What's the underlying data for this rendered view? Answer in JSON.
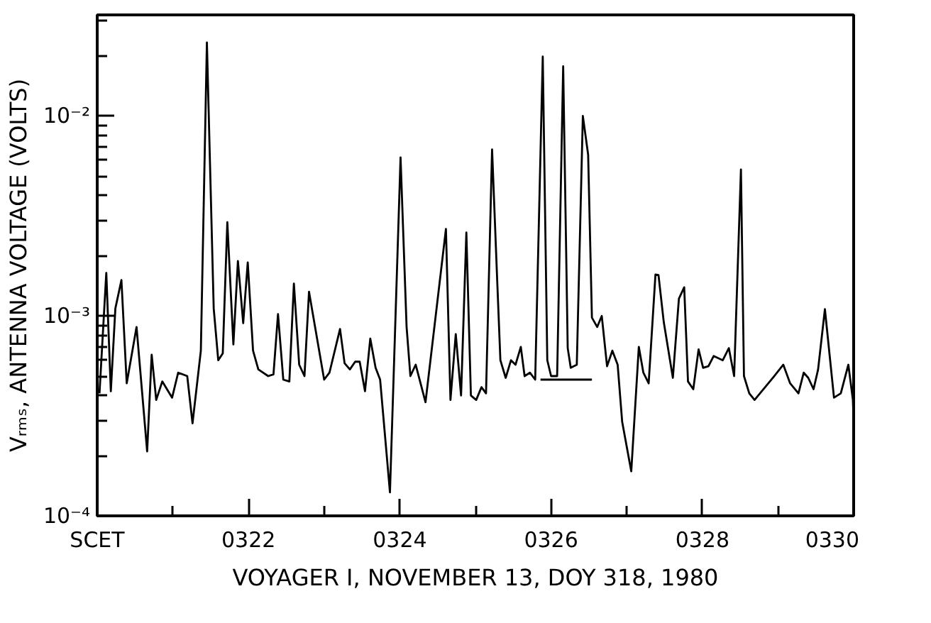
{
  "chart_data": {
    "type": "line",
    "xlabel": "VOYAGER I, NOVEMBER 13, DOY 318, 1980",
    "ylabel": "Vᵣₘₛ, ANTENNA VOLTAGE (VOLTS)",
    "log": "y",
    "grid": false,
    "marker": "none",
    "line_style": "solid",
    "xlim": [
      320,
      330
    ],
    "ylim": [
      0.0001,
      0.032
    ],
    "xticks": [
      {
        "value": 320,
        "label": "SCET"
      },
      {
        "value": 321,
        "label": null
      },
      {
        "value": 322,
        "label": "0322"
      },
      {
        "value": 323,
        "label": null
      },
      {
        "value": 324,
        "label": "0324"
      },
      {
        "value": 325,
        "label": null
      },
      {
        "value": 326,
        "label": "0326"
      },
      {
        "value": 327,
        "label": null
      },
      {
        "value": 328,
        "label": "0328"
      },
      {
        "value": 329,
        "label": null
      },
      {
        "value": 330,
        "label": "0330"
      }
    ],
    "yticks": [
      {
        "value": 0.0001,
        "label": "10⁻⁴"
      },
      {
        "value": 0.0002,
        "label": null
      },
      {
        "value": 0.0003,
        "label": null
      },
      {
        "value": 0.0004,
        "label": null
      },
      {
        "value": 0.0005,
        "label": null
      },
      {
        "value": 0.0006,
        "label": null
      },
      {
        "value": 0.0007,
        "label": null
      },
      {
        "value": 0.0008,
        "label": null
      },
      {
        "value": 0.0009,
        "label": null
      },
      {
        "value": 0.001,
        "label": "10⁻³"
      },
      {
        "value": 0.002,
        "label": null
      },
      {
        "value": 0.003,
        "label": null
      },
      {
        "value": 0.004,
        "label": null
      },
      {
        "value": 0.005,
        "label": null
      },
      {
        "value": 0.006,
        "label": null
      },
      {
        "value": 0.007,
        "label": null
      },
      {
        "value": 0.008,
        "label": null
      },
      {
        "value": 0.009,
        "label": null
      },
      {
        "value": 0.01,
        "label": "10⁻²"
      },
      {
        "value": 0.02,
        "label": null
      },
      {
        "value": 0.03,
        "label": null
      }
    ],
    "series": [
      {
        "color": "#000000",
        "x": [
          320.03,
          320.12,
          320.18,
          320.24,
          320.32,
          320.39,
          320.52,
          320.66,
          320.72,
          320.78,
          320.86,
          320.99,
          321.07,
          321.19,
          321.26,
          321.37,
          321.45,
          321.54,
          321.6,
          321.66,
          321.72,
          321.8,
          321.86,
          321.93,
          321.99,
          322.06,
          322.13,
          322.26,
          322.33,
          322.39,
          322.46,
          322.54,
          322.6,
          322.67,
          322.74,
          322.8,
          323.0,
          323.07,
          323.21,
          323.27,
          323.34,
          323.41,
          323.47,
          323.54,
          323.61,
          323.68,
          323.74,
          323.87,
          324.01,
          324.09,
          324.14,
          324.21,
          324.34,
          324.61,
          324.67,
          324.74,
          324.81,
          324.88,
          324.94,
          325.01,
          325.08,
          325.14,
          325.22,
          325.29,
          325.33,
          325.4,
          325.47,
          325.53,
          325.6,
          325.65,
          325.72,
          325.79,
          325.89,
          325.95,
          326.0,
          326.08,
          326.16,
          326.22,
          326.26,
          326.34,
          326.42,
          326.49,
          326.54,
          326.61,
          326.67,
          326.74,
          326.81,
          326.88,
          326.94,
          327.06,
          327.16,
          327.22,
          327.29,
          327.38,
          327.42,
          327.49,
          327.61,
          327.69,
          327.76,
          327.81,
          327.88,
          327.95,
          328.01,
          328.08,
          328.15,
          328.27,
          328.35,
          328.42,
          328.51,
          328.55,
          328.62,
          328.69,
          328.95,
          329.07,
          329.16,
          329.27,
          329.34,
          329.4,
          329.47,
          329.53,
          329.62,
          329.74,
          329.83,
          329.93,
          329.99,
          330
        ],
        "values": [
          0.00041,
          0.00164,
          0.00042,
          0.00109,
          0.00151,
          0.00046,
          0.00088,
          0.00021,
          0.00064,
          0.00038,
          0.00047,
          0.00039,
          0.00052,
          0.0005,
          0.00029,
          0.00067,
          0.0233,
          0.00109,
          0.0006,
          0.00065,
          0.00294,
          0.00072,
          0.00188,
          0.00092,
          0.00185,
          0.00067,
          0.00054,
          0.0005,
          0.00051,
          0.00102,
          0.00048,
          0.00047,
          0.00145,
          0.00057,
          0.0005,
          0.00132,
          0.00048,
          0.00052,
          0.00086,
          0.00058,
          0.00054,
          0.00059,
          0.00059,
          0.00042,
          0.00077,
          0.00055,
          0.00048,
          0.000131,
          0.0062,
          0.00088,
          0.0005,
          0.00057,
          0.00037,
          0.00272,
          0.00038,
          0.00081,
          0.0004,
          0.00261,
          0.0004,
          0.00038,
          0.00044,
          0.00041,
          0.0068,
          0.00143,
          0.0006,
          0.00049,
          0.0006,
          0.00057,
          0.0007,
          0.0005,
          0.00052,
          0.00048,
          0.0198,
          0.0006,
          0.0005,
          0.0005,
          0.0177,
          0.00069,
          0.00055,
          0.00057,
          0.01,
          0.0064,
          0.00098,
          0.00088,
          0.001,
          0.00056,
          0.00067,
          0.00057,
          0.000295,
          0.000167,
          0.0007,
          0.00052,
          0.00046,
          0.00161,
          0.0016,
          0.00093,
          0.00049,
          0.00122,
          0.00139,
          0.00047,
          0.00043,
          0.00068,
          0.00055,
          0.00056,
          0.00063,
          0.0006,
          0.00069,
          0.0005,
          0.0054,
          0.0005,
          0.00041,
          0.00038,
          0.0005,
          0.00057,
          0.00046,
          0.00041,
          0.00052,
          0.00049,
          0.00043,
          0.00054,
          0.00108,
          0.00039,
          0.00041,
          0.00057,
          0.00038,
          0.000295
        ]
      },
      {
        "type": "line",
        "color": "#000000",
        "x": [
          325.86,
          326.54
        ],
        "values": [
          0.00048,
          0.00048
        ]
      }
    ]
  }
}
